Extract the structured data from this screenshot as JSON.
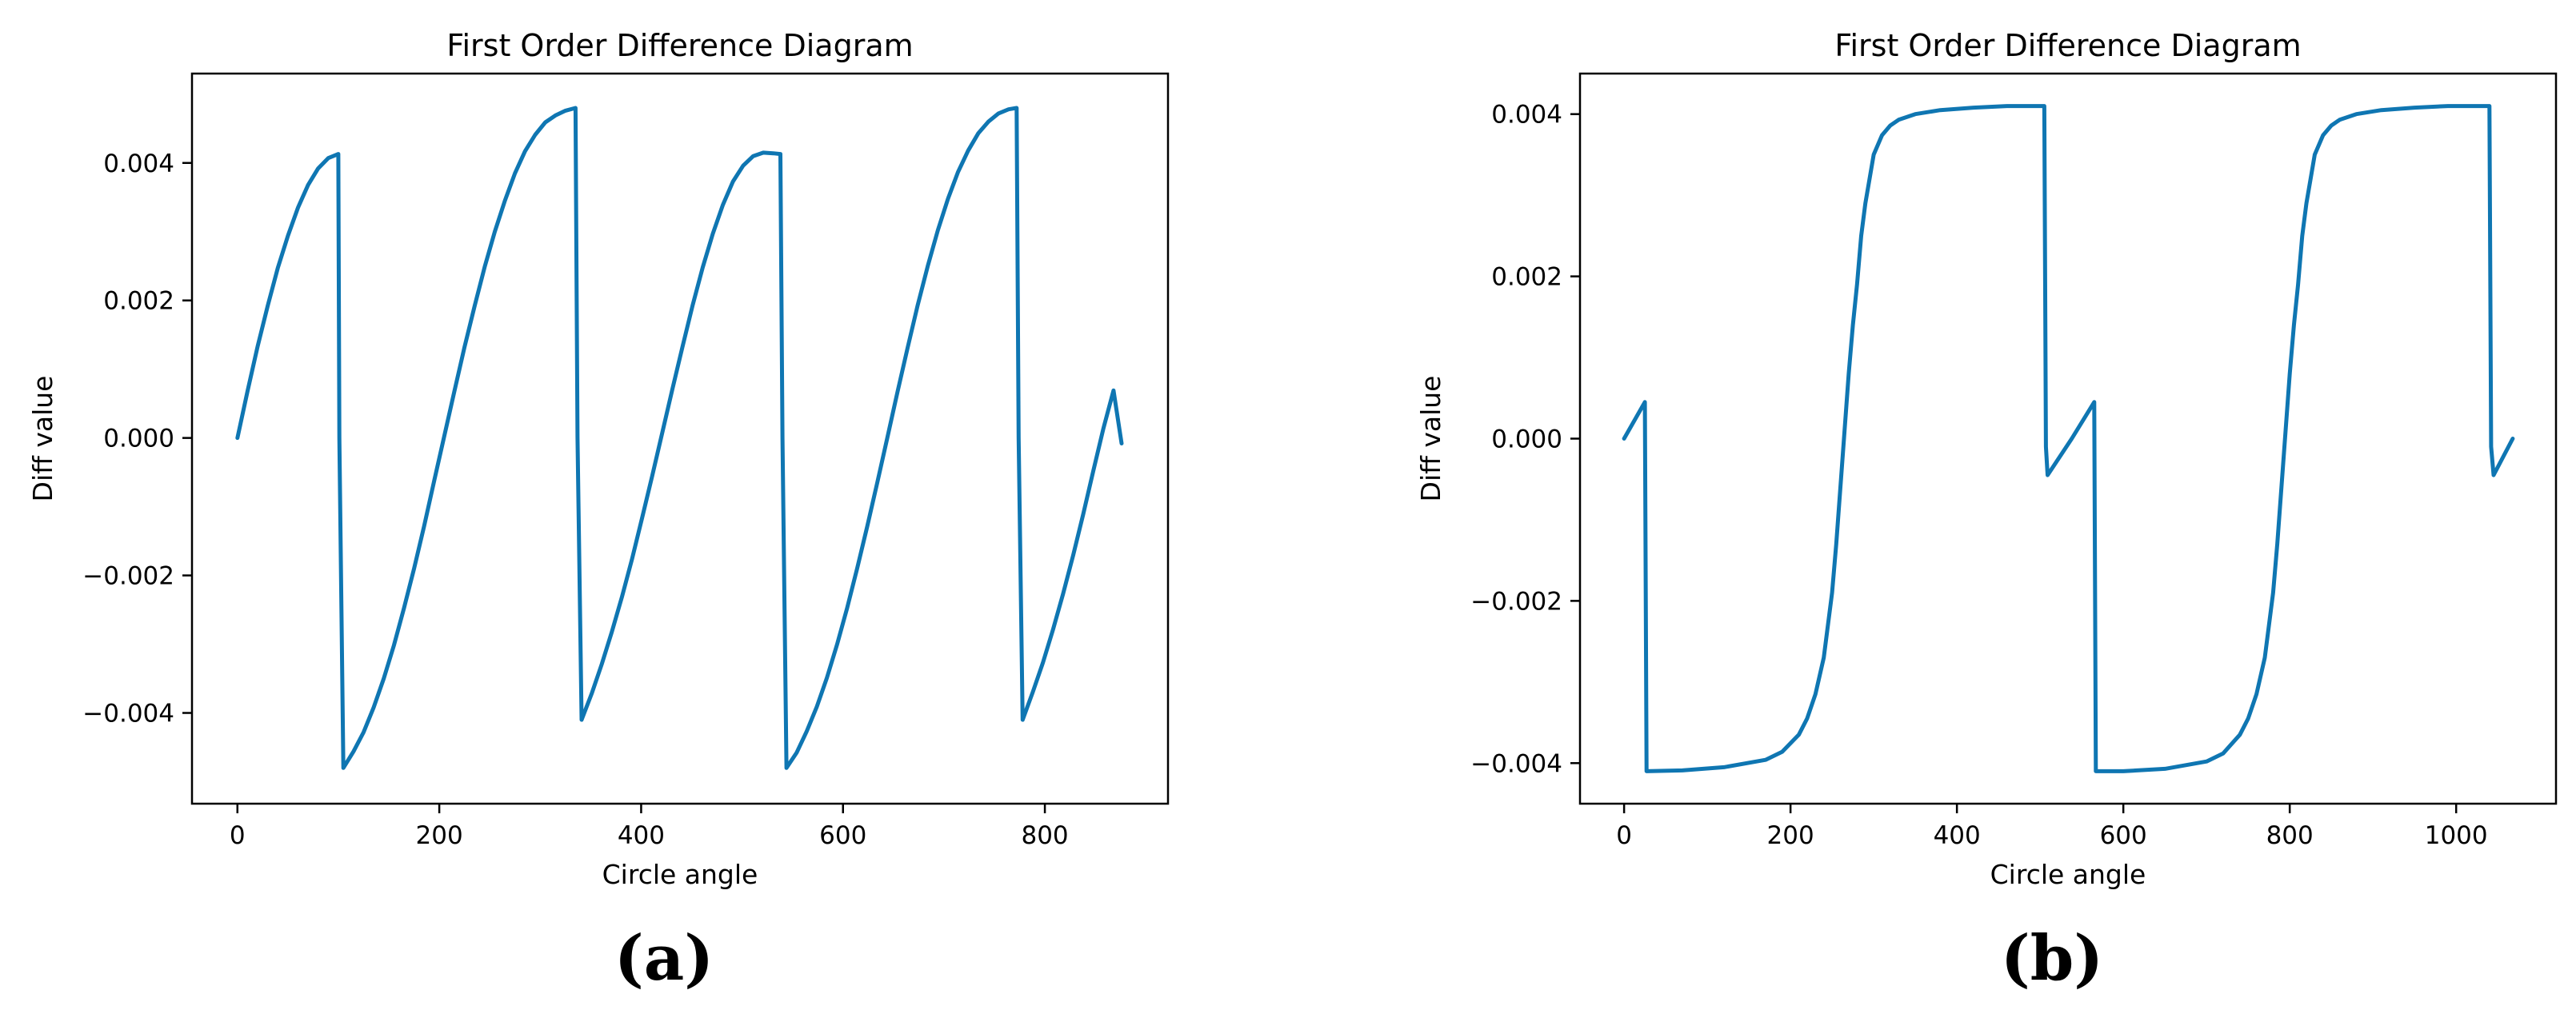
{
  "colors": {
    "series": "#0F76B2"
  },
  "panels": [
    {
      "label": "(a)",
      "chart_data": {
        "type": "line",
        "title": "First Order Difference Diagram",
        "xlabel": "Circle angle",
        "ylabel": "Diff value",
        "xlim": [
          -45,
          922
        ],
        "ylim": [
          -0.00532,
          0.0053
        ],
        "xticks": [
          0,
          200,
          400,
          600,
          800
        ],
        "xtick_labels": [
          "0",
          "200",
          "400",
          "600",
          "800"
        ],
        "yticks": [
          -0.004,
          -0.002,
          0.0,
          0.002,
          0.004
        ],
        "ytick_labels": [
          "−0.004",
          "−0.002",
          "0.000",
          "0.002",
          "0.004"
        ],
        "grid": false,
        "legend": "none",
        "series": [
          {
            "x": [
              0,
              10,
              20,
              30,
              40,
              50,
              60,
              70,
              80,
              90,
              100,
              101,
              105,
              115,
              125,
              135,
              145,
              155,
              165,
              175,
              185,
              195,
              205,
              215,
              225,
              235,
              245,
              255,
              265,
              275,
              285,
              295,
              305,
              315,
              325,
              335,
              337,
              341,
              351,
              361,
              371,
              381,
              391,
              401,
              411,
              421,
              431,
              441,
              451,
              461,
              471,
              481,
              491,
              501,
              511,
              521,
              531,
              538,
              540,
              544,
              554,
              564,
              574,
              584,
              594,
              604,
              614,
              624,
              634,
              644,
              654,
              664,
              674,
              684,
              694,
              704,
              714,
              724,
              734,
              744,
              754,
              764,
              772,
              774,
              778,
              788,
              798,
              808,
              818,
              828,
              838,
              848,
              858,
              868,
              876
            ],
            "y": [
              0.0,
              0.00068,
              0.00133,
              0.00192,
              0.00247,
              0.00294,
              0.00335,
              0.00368,
              0.00392,
              0.00407,
              0.00413,
              0.0,
              -0.0048,
              -0.00456,
              -0.00428,
              -0.00392,
              -0.0035,
              -0.00302,
              -0.00248,
              -0.0019,
              -0.00128,
              -0.00062,
              3e-05,
              0.00068,
              0.00132,
              0.00192,
              0.00249,
              0.003,
              0.00345,
              0.00385,
              0.00417,
              0.00441,
              0.00459,
              0.00469,
              0.00476,
              0.0048,
              0.0,
              -0.0041,
              -0.00372,
              -0.00329,
              -0.00282,
              -0.00231,
              -0.00176,
              -0.00116,
              -0.00055,
              8e-05,
              0.00071,
              0.00133,
              0.00193,
              0.00248,
              0.00297,
              0.00339,
              0.00373,
              0.00396,
              0.0041,
              0.00415,
              0.00414,
              0.00413,
              0.0,
              -0.0048,
              -0.00458,
              -0.00427,
              -0.00391,
              -0.00349,
              -0.00301,
              -0.00248,
              -0.0019,
              -0.00129,
              -0.00065,
              1e-05,
              0.00067,
              0.00131,
              0.00193,
              0.0025,
              0.00302,
              0.00348,
              0.00387,
              0.00418,
              0.00443,
              0.0046,
              0.00472,
              0.00478,
              0.0048,
              0.0,
              -0.0041,
              -0.0037,
              -0.00327,
              -0.00279,
              -0.00227,
              -0.00171,
              -0.00111,
              -0.00048,
              0.00014,
              0.00069,
              -8e-05
            ]
          }
        ]
      }
    },
    {
      "label": "(b)",
      "chart_data": {
        "type": "line",
        "title": "First Order Difference Diagram",
        "xlabel": "Circle angle",
        "ylabel": "Diff value",
        "xlim": [
          -53,
          1120
        ],
        "ylim": [
          -0.0045,
          0.0045
        ],
        "xticks": [
          0,
          200,
          400,
          600,
          800,
          1000
        ],
        "xtick_labels": [
          "0",
          "200",
          "400",
          "600",
          "800",
          "1000"
        ],
        "yticks": [
          -0.004,
          -0.002,
          0.0,
          0.002,
          0.004
        ],
        "ytick_labels": [
          "−0.004",
          "−0.002",
          "0.000",
          "0.002",
          "0.004"
        ],
        "grid": false,
        "legend": "none",
        "series": [
          {
            "x": [
              0,
              25,
              27,
              70,
              120,
              170,
              190,
              210,
              220,
              230,
              240,
              250,
              255,
              260,
              265,
              270,
              275,
              280,
              285,
              290,
              295,
              300,
              310,
              320,
              330,
              350,
              380,
              420,
              460,
              505,
              507,
              509,
              538,
              565,
              567,
              600,
              650,
              700,
              720,
              740,
              750,
              760,
              770,
              780,
              785,
              790,
              795,
              800,
              805,
              810,
              815,
              820,
              825,
              830,
              840,
              850,
              860,
              880,
              910,
              950,
              990,
              1040,
              1042,
              1045,
              1068
            ],
            "y": [
              0.0,
              0.00045,
              -0.0041,
              -0.00409,
              -0.00405,
              -0.00396,
              -0.00386,
              -0.00365,
              -0.00345,
              -0.00315,
              -0.0027,
              -0.0019,
              -0.0013,
              -0.0006,
              0.0001,
              0.0008,
              0.0014,
              0.0019,
              0.0025,
              0.0029,
              0.0032,
              0.0035,
              0.00374,
              0.00386,
              0.00393,
              0.004,
              0.00405,
              0.00408,
              0.0041,
              0.0041,
              -0.0001,
              -0.00045,
              0.0,
              0.00045,
              -0.0041,
              -0.0041,
              -0.00407,
              -0.00398,
              -0.00388,
              -0.00365,
              -0.00345,
              -0.00315,
              -0.0027,
              -0.0019,
              -0.0013,
              -0.0006,
              0.0001,
              0.0008,
              0.0014,
              0.0019,
              0.0025,
              0.0029,
              0.0032,
              0.0035,
              0.00374,
              0.00386,
              0.00393,
              0.004,
              0.00405,
              0.00408,
              0.0041,
              0.0041,
              -0.0001,
              -0.00045,
              0.0
            ]
          }
        ]
      }
    }
  ]
}
